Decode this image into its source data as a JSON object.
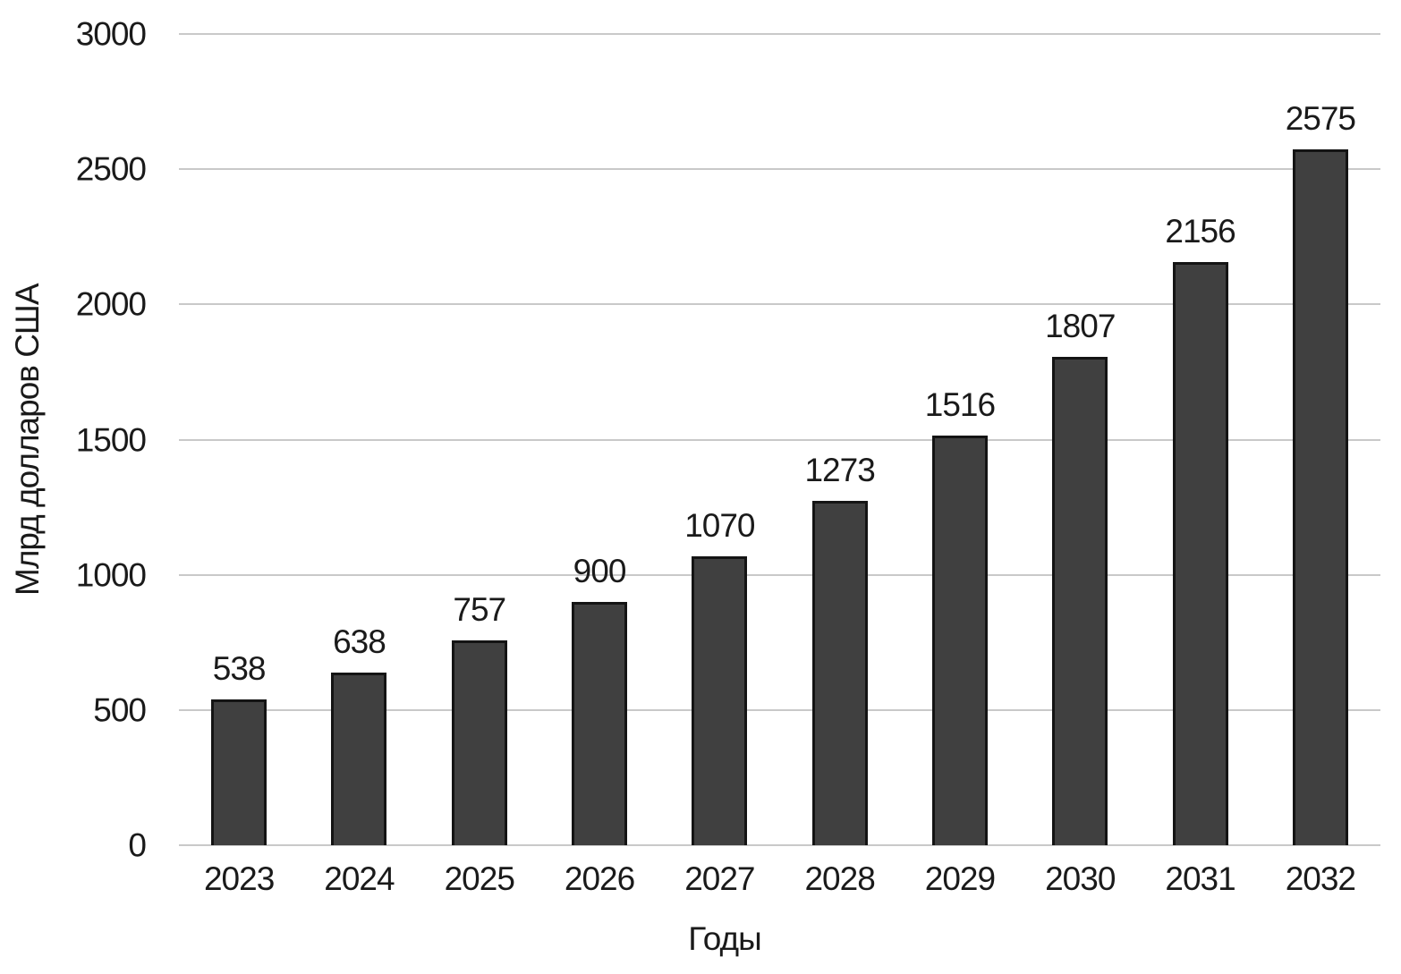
{
  "chart_data": {
    "type": "bar",
    "title": "",
    "xlabel": "Годы",
    "ylabel": "Млрд долларов США",
    "categories": [
      "2023",
      "2024",
      "2025",
      "2026",
      "2027",
      "2028",
      "2029",
      "2030",
      "2031",
      "2032"
    ],
    "values": [
      538,
      638,
      757,
      900,
      1070,
      1273,
      1516,
      1807,
      2156,
      2575
    ],
    "yticks": [
      0,
      500,
      1000,
      1500,
      2000,
      2500,
      3000
    ],
    "ylim": [
      0,
      3000
    ],
    "grid": true,
    "legend_position": "none",
    "show_data_labels": true,
    "bar_color": "#404040",
    "bar_border_color": "#141414",
    "gridline_color": "#c9c9c9",
    "text_color": "#1a1a1a"
  }
}
